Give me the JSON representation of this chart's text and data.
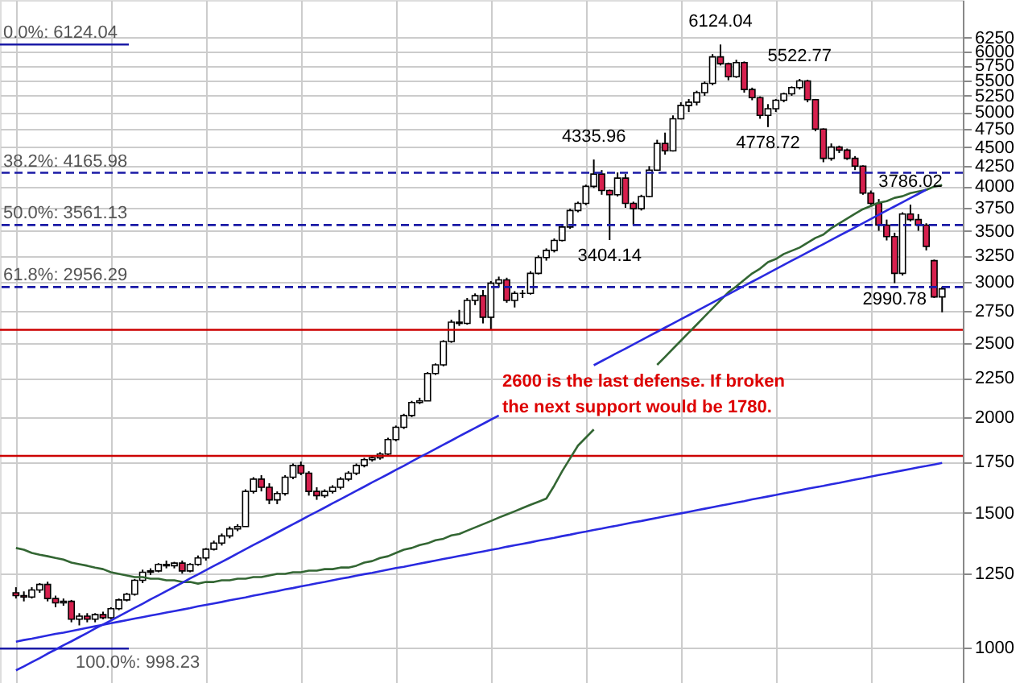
{
  "chart_data": {
    "type": "candlestick",
    "categories": [
      null,
      null,
      null,
      null,
      null,
      null,
      null,
      null,
      null,
      null,
      null,
      null,
      null,
      null,
      null,
      null,
      null,
      null,
      null,
      null,
      null,
      null,
      null,
      null,
      null,
      null,
      null,
      null,
      null,
      null,
      null,
      null,
      null,
      null,
      null,
      null,
      null,
      null,
      null,
      null,
      null,
      null,
      null,
      null,
      null,
      null,
      null,
      null,
      null,
      null,
      null,
      null,
      null,
      null,
      null,
      null,
      null,
      null,
      null,
      null,
      null,
      null,
      null,
      null,
      null,
      null,
      null,
      null,
      null,
      null,
      null,
      null,
      null,
      null,
      null,
      null,
      null,
      null,
      null,
      null,
      null,
      null,
      null,
      null,
      null,
      null,
      null,
      null,
      null,
      null,
      null,
      null,
      null,
      null,
      null,
      null,
      null,
      null,
      null,
      null,
      null,
      null,
      null,
      null,
      null,
      null,
      null,
      null,
      null,
      null,
      null,
      null,
      null,
      null,
      null,
      null,
      null,
      null
    ],
    "ohlc": [
      [
        1180,
        1200,
        1160,
        1170
      ],
      [
        1170,
        1185,
        1150,
        1165
      ],
      [
        1165,
        1200,
        1160,
        1190
      ],
      [
        1190,
        1215,
        1180,
        1210
      ],
      [
        1210,
        1220,
        1150,
        1160
      ],
      [
        1160,
        1170,
        1130,
        1145
      ],
      [
        1145,
        1160,
        1135,
        1150
      ],
      [
        1150,
        1155,
        1080,
        1090
      ],
      [
        1090,
        1110,
        1070,
        1100
      ],
      [
        1100,
        1110,
        1080,
        1090
      ],
      [
        1090,
        1110,
        1080,
        1105
      ],
      [
        1105,
        1115,
        1090,
        1095
      ],
      [
        1095,
        1130,
        1090,
        1125
      ],
      [
        1125,
        1160,
        1120,
        1155
      ],
      [
        1155,
        1180,
        1150,
        1175
      ],
      [
        1175,
        1230,
        1170,
        1225
      ],
      [
        1225,
        1265,
        1215,
        1255
      ],
      [
        1255,
        1270,
        1245,
        1260
      ],
      [
        1260,
        1290,
        1255,
        1285
      ],
      [
        1285,
        1300,
        1270,
        1280
      ],
      [
        1280,
        1295,
        1270,
        1290
      ],
      [
        1290,
        1300,
        1250,
        1260
      ],
      [
        1260,
        1290,
        1255,
        1285
      ],
      [
        1285,
        1320,
        1280,
        1310
      ],
      [
        1310,
        1350,
        1300,
        1345
      ],
      [
        1345,
        1380,
        1340,
        1370
      ],
      [
        1370,
        1410,
        1360,
        1400
      ],
      [
        1400,
        1440,
        1390,
        1430
      ],
      [
        1430,
        1450,
        1420,
        1440
      ],
      [
        1440,
        1610,
        1440,
        1600
      ],
      [
        1600,
        1670,
        1590,
        1660
      ],
      [
        1660,
        1680,
        1600,
        1620
      ],
      [
        1620,
        1640,
        1540,
        1560
      ],
      [
        1560,
        1600,
        1540,
        1590
      ],
      [
        1590,
        1680,
        1580,
        1670
      ],
      [
        1670,
        1740,
        1660,
        1730
      ],
      [
        1730,
        1750,
        1680,
        1690
      ],
      [
        1690,
        1700,
        1580,
        1600
      ],
      [
        1600,
        1620,
        1560,
        1580
      ],
      [
        1580,
        1610,
        1570,
        1600
      ],
      [
        1600,
        1630,
        1590,
        1620
      ],
      [
        1620,
        1670,
        1610,
        1660
      ],
      [
        1660,
        1700,
        1650,
        1690
      ],
      [
        1690,
        1740,
        1680,
        1730
      ],
      [
        1730,
        1770,
        1720,
        1760
      ],
      [
        1760,
        1780,
        1750,
        1770
      ],
      [
        1770,
        1800,
        1760,
        1790
      ],
      [
        1790,
        1880,
        1780,
        1870
      ],
      [
        1870,
        1950,
        1860,
        1940
      ],
      [
        1940,
        2020,
        1930,
        2010
      ],
      [
        2010,
        2100,
        2000,
        2090
      ],
      [
        2090,
        2120,
        2080,
        2100
      ],
      [
        2100,
        2290,
        2100,
        2280
      ],
      [
        2280,
        2350,
        2270,
        2340
      ],
      [
        2340,
        2520,
        2330,
        2510
      ],
      [
        2510,
        2680,
        2500,
        2660
      ],
      [
        2660,
        2760,
        2630,
        2650
      ],
      [
        2650,
        2860,
        2640,
        2840
      ],
      [
        2840,
        2900,
        2800,
        2880
      ],
      [
        2880,
        2930,
        2650,
        2700
      ],
      [
        2700,
        3010,
        2600,
        2990
      ],
      [
        2990,
        3050,
        2950,
        3020
      ],
      [
        3020,
        3040,
        2820,
        2840
      ],
      [
        2840,
        2920,
        2780,
        2900
      ],
      [
        2900,
        2930,
        2860,
        2900
      ],
      [
        2900,
        3100,
        2890,
        3080
      ],
      [
        3080,
        3250,
        3070,
        3230
      ],
      [
        3230,
        3320,
        3200,
        3300
      ],
      [
        3300,
        3420,
        3280,
        3400
      ],
      [
        3400,
        3560,
        3390,
        3540
      ],
      [
        3540,
        3740,
        3520,
        3720
      ],
      [
        3720,
        3820,
        3700,
        3800
      ],
      [
        3800,
        4020,
        3780,
        4000
      ],
      [
        4000,
        4335.96,
        3980,
        4150
      ],
      [
        4150,
        4200,
        3900,
        3950
      ],
      [
        3950,
        3960,
        3404.14,
        3900
      ],
      [
        3900,
        4170,
        3880,
        4100
      ],
      [
        4100,
        4150,
        3750,
        3800
      ],
      [
        3800,
        3820,
        3560,
        3740
      ],
      [
        3740,
        3900,
        3720,
        3880
      ],
      [
        3880,
        4250,
        3870,
        4200
      ],
      [
        4200,
        4600,
        4190,
        4550
      ],
      [
        4550,
        4700,
        4400,
        4450
      ],
      [
        4450,
        4950,
        4440,
        4900
      ],
      [
        4900,
        5150,
        4890,
        5100
      ],
      [
        5100,
        5200,
        5000,
        5150
      ],
      [
        5150,
        5330,
        5100,
        5300
      ],
      [
        5300,
        5480,
        5250,
        5450
      ],
      [
        5450,
        5950,
        5420,
        5900
      ],
      [
        5900,
        6124.04,
        5750,
        5780
      ],
      [
        5780,
        5800,
        5500,
        5560
      ],
      [
        5560,
        5850,
        5540,
        5800
      ],
      [
        5800,
        5820,
        5300,
        5350
      ],
      [
        5350,
        5380,
        5180,
        5220
      ],
      [
        5220,
        5240,
        4900,
        4950
      ],
      [
        4950,
        5120,
        4778.72,
        5050
      ],
      [
        5050,
        5200,
        5000,
        5180
      ],
      [
        5180,
        5300,
        5150,
        5280
      ],
      [
        5280,
        5400,
        5250,
        5380
      ],
      [
        5380,
        5522.77,
        5350,
        5490
      ],
      [
        5490,
        5510,
        5150,
        5190
      ],
      [
        5190,
        5200,
        4720,
        4750
      ],
      [
        4750,
        4760,
        4300,
        4350
      ],
      [
        4350,
        4550,
        4320,
        4500
      ],
      [
        4500,
        4520,
        4420,
        4460
      ],
      [
        4460,
        4480,
        4330,
        4350
      ],
      [
        4350,
        4380,
        4200,
        4250
      ],
      [
        4250,
        4260,
        3900,
        3920
      ],
      [
        3920,
        3950,
        3780,
        3800
      ],
      [
        3800,
        3850,
        3500,
        3560
      ],
      [
        3560,
        3620,
        3400,
        3440
      ],
      [
        3440,
        3480,
        2990.78,
        3080
      ],
      [
        3080,
        3700,
        3060,
        3680
      ],
      [
        3680,
        3786.02,
        3600,
        3620
      ],
      [
        3620,
        3680,
        3500,
        3560
      ],
      [
        3560,
        3580,
        3300,
        3340
      ],
      [
        3200,
        3210,
        2860,
        2870
      ],
      [
        2870,
        2960,
        2740,
        2940
      ]
    ],
    "series": [
      {
        "type": "line",
        "color": "#336633",
        "values": [
          1350,
          1343,
          1330,
          1323,
          1317,
          1310,
          1304,
          1292,
          1286,
          1280,
          1273,
          1267,
          1255,
          1249,
          1243,
          1237,
          1237,
          1231,
          1231,
          1225,
          1225,
          1219,
          1219,
          1213,
          1219,
          1219,
          1225,
          1225,
          1231,
          1231,
          1237,
          1237,
          1243,
          1249,
          1249,
          1255,
          1255,
          1261,
          1261,
          1267,
          1267,
          1273,
          1273,
          1280,
          1292,
          1298,
          1310,
          1317,
          1330,
          1343,
          1350,
          1362,
          1369,
          1382,
          1388,
          1402,
          1408,
          1422,
          1436,
          1450,
          1464,
          1479,
          1493,
          1507,
          1522,
          1537,
          1551,
          1566,
          1628,
          1700,
          1767,
          1836,
          1881,
          1927,
          null,
          null,
          null,
          null,
          null,
          null,
          null,
          2340,
          2397,
          2456,
          2516,
          2578,
          2641,
          2706,
          2772,
          2840,
          2910,
          2962,
          3020,
          3079,
          3124,
          3185,
          3216,
          3264,
          3296,
          3328,
          3377,
          3426,
          3460,
          3527,
          3578,
          3630,
          3683,
          3735,
          3771,
          3808,
          3826,
          3864,
          3883,
          3920,
          3939,
          3958,
          3997,
          4016
        ]
      },
      {
        "type": "line",
        "color": "#2a2ae0",
        "values": [
          935,
          946,
          958,
          970,
          983,
          995,
          1008,
          1020,
          1033,
          1046,
          1060,
          1073,
          1086,
          1100,
          1114,
          1128,
          1142,
          1157,
          1171,
          1186,
          1201,
          1216,
          1232,
          1247,
          1263,
          1279,
          1295,
          1311,
          1328,
          1345,
          1362,
          1379,
          1396,
          1414,
          1432,
          1450,
          1468,
          1487,
          1505,
          1524,
          1544,
          1563,
          1583,
          1603,
          1623,
          1644,
          1664,
          1685,
          1707,
          1728,
          1751,
          1773,
          1795,
          1818,
          1841,
          1864,
          1888,
          1912,
          1936,
          1960,
          1985,
          2010,
          null,
          null,
          null,
          null,
          null,
          null,
          null,
          null,
          null,
          null,
          null,
          2337,
          2367,
          2397,
          2427,
          2457,
          2488,
          2520,
          2552,
          2584,
          2617,
          2650,
          2683,
          2717,
          2751,
          2786,
          2821,
          2857,
          2893,
          2930,
          2967,
          3004,
          3042,
          3080,
          3119,
          3159,
          3199,
          3239,
          3280,
          3321,
          3363,
          3406,
          3449,
          3492,
          3536,
          3581,
          3626,
          3672,
          3719,
          3766,
          3813,
          3861,
          3910,
          3960,
          null,
          null
        ]
      },
      {
        "type": "line",
        "color": "#2a2ae0",
        "values": [
          1019,
          1024,
          1028,
          1033,
          1038,
          1043,
          1047,
          1052,
          1057,
          1062,
          1067,
          1072,
          1077,
          1082,
          1087,
          1092,
          1097,
          1102,
          1107,
          1112,
          1117,
          1122,
          1127,
          1133,
          1138,
          1143,
          1148,
          1154,
          1159,
          1164,
          1170,
          1175,
          1181,
          1186,
          1192,
          1197,
          1203,
          1208,
          1214,
          1219,
          1225,
          1231,
          1236,
          1242,
          1248,
          1253,
          1259,
          1265,
          1271,
          1276,
          1282,
          1288,
          1294,
          1300,
          1306,
          1312,
          1318,
          1324,
          1330,
          1336,
          1342,
          1348,
          1355,
          1361,
          1367,
          1373,
          1380,
          1386,
          1392,
          1399,
          1405,
          1412,
          1418,
          1425,
          1431,
          1438,
          1444,
          1451,
          1458,
          1464,
          1471,
          1478,
          1485,
          1491,
          1498,
          1505,
          1512,
          1519,
          1526,
          1533,
          1540,
          1547,
          1554,
          1562,
          1569,
          1576,
          1583,
          1591,
          1598,
          1605,
          1613,
          1620,
          1627,
          1635,
          1642,
          1650,
          1658,
          1665,
          1673,
          1681,
          1688,
          1696,
          1704,
          1712,
          1720,
          1727,
          1735,
          1743
        ]
      }
    ],
    "ylim": [
      900,
      7000
    ],
    "yticks": [
      1000,
      1250,
      1500,
      1750,
      2000,
      2250,
      2500,
      2750,
      3000,
      3250,
      3500,
      3750,
      4000,
      4250,
      4500,
      4750,
      5000,
      5250,
      5500,
      5750,
      6000,
      6250
    ],
    "log": "y",
    "grid": true,
    "tick_labels": "y",
    "marker": "none",
    "ref_lines": [
      {
        "axis": "y",
        "value": 6124.04,
        "label": "0.0%: 6124.04",
        "color": "#1a1aa6",
        "line_style": "solid"
      },
      {
        "axis": "y",
        "value": 4165.98,
        "label": "38.2%: 4165.98",
        "color": "#1a1aa6",
        "line_style": "dashed"
      },
      {
        "axis": "y",
        "value": 3561.13,
        "label": "50.0%: 3561.13",
        "color": "#1a1aa6",
        "line_style": "dashed"
      },
      {
        "axis": "y",
        "value": 2956.29,
        "label": "61.8%: 2956.29",
        "color": "#1a1aa6",
        "line_style": "dashed"
      },
      {
        "axis": "y",
        "value": 998.23,
        "label": "100.0%: 998.23",
        "color": "#1a1aa6",
        "line_style": "solid"
      },
      {
        "axis": "y",
        "value": 2600,
        "color": "#cc0000",
        "line_style": "solid"
      },
      {
        "axis": "y",
        "value": 1780,
        "color": "#cc0000",
        "line_style": "solid"
      }
    ],
    "annotations": [
      {
        "text": "6124.04",
        "y": 6124.04
      },
      {
        "text": "4335.96",
        "y": 4335.96
      },
      {
        "text": "3404.14",
        "y": 3404.14
      },
      {
        "text": "4778.72",
        "y": 4778.72
      },
      {
        "text": "5522.77",
        "y": 5522.77
      },
      {
        "text": "3786.02",
        "y": 3786.02
      },
      {
        "text": "2990.78",
        "y": 2990.78
      },
      "2600 is the last defense. If broken\nthe next support would be 1780."
    ]
  }
}
